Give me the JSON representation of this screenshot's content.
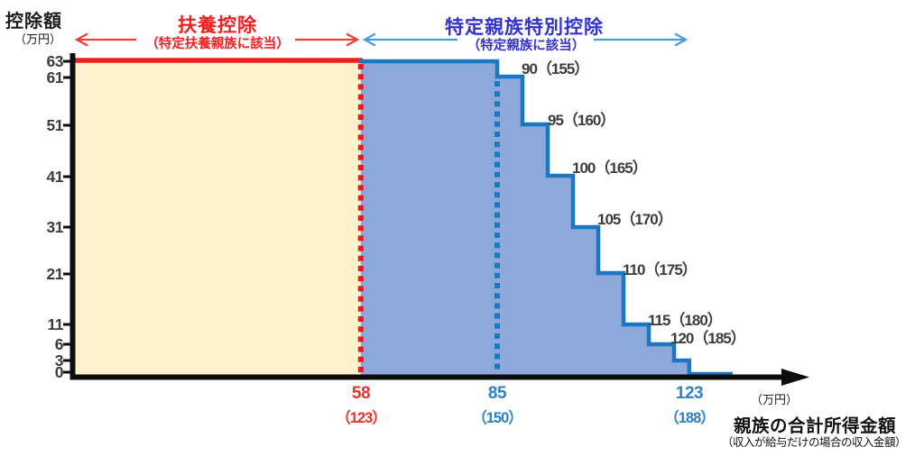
{
  "chart_data": {
    "type": "area",
    "description": "step chart of deduction amount vs relative's total income",
    "y_axis": {
      "title": "控除額",
      "unit": "（万円）",
      "ticks": [
        63,
        61,
        51,
        41,
        31,
        21,
        11,
        6,
        3,
        0
      ],
      "range": [
        0,
        63
      ]
    },
    "x_axis": {
      "unit": "（万円）",
      "title": "親族の合計所得金額",
      "subtitle": "（収入が給与だけの場合の収入金額）",
      "range": [
        0,
        140
      ],
      "ticks": [
        {
          "value": 58,
          "label": "58",
          "salary_label": "（123）",
          "color": "#ee3028"
        },
        {
          "value": 85,
          "label": "85",
          "salary_label": "（150）",
          "color": "#2e80c8"
        },
        {
          "value": 123,
          "label": "123",
          "salary_label": "（188）",
          "color": "#2e80c8"
        }
      ]
    },
    "annotations": [
      {
        "title": "扶養控除",
        "subtitle": "（特定扶養親族に該当）",
        "color": "#f02020",
        "x_range": [
          0,
          58
        ]
      },
      {
        "title": "特定親族特別控除",
        "subtitle": "（特定親族に該当）",
        "color": "#3232cd",
        "x_range": [
          58,
          123
        ]
      }
    ],
    "series": [
      {
        "name": "扶養控除",
        "x_range": [
          0,
          58
        ],
        "value": 63,
        "fill": "#fef2cd",
        "line_color": "#f02020"
      },
      {
        "name": "特定親族特別控除",
        "fill": "#8da8db",
        "line_color": "#1c77c3",
        "steps": [
          {
            "from": 58,
            "to": 85,
            "value": 63,
            "label": ""
          },
          {
            "from": 85,
            "to": 90,
            "value": 61,
            "label": ""
          },
          {
            "from": 90,
            "to": 95,
            "value": 51,
            "label": "90（155）"
          },
          {
            "from": 95,
            "to": 100,
            "value": 41,
            "label": "95（160）"
          },
          {
            "from": 100,
            "to": 105,
            "value": 31,
            "label": "100（165）"
          },
          {
            "from": 105,
            "to": 110,
            "value": 21,
            "label": "105（170）"
          },
          {
            "from": 110,
            "to": 115,
            "value": 11,
            "label": "110（175）"
          },
          {
            "from": 115,
            "to": 120,
            "value": 6,
            "label": "115（180）"
          },
          {
            "from": 120,
            "to": 123,
            "value": 3,
            "label": "120（185）"
          }
        ]
      }
    ],
    "thresholds": [
      {
        "x": 58,
        "style": "dotted",
        "color": "#f01818"
      },
      {
        "x": 85,
        "style": "dotted",
        "color": "#1c77c3"
      }
    ]
  },
  "palette": {
    "red": "#f01818",
    "arrow_red": "#f23d3d",
    "blue_heading": "#3232cd",
    "arrow_blue": "#4d9bd9",
    "blue_line": "#1c77c3",
    "blue_fill": "#8da8db",
    "cream_fill": "#fef2cd",
    "axis_black": "#0d0d0d",
    "label_red": "#ee3028",
    "label_blue": "#2e80c8",
    "text_dark": "#3c3c3c"
  }
}
